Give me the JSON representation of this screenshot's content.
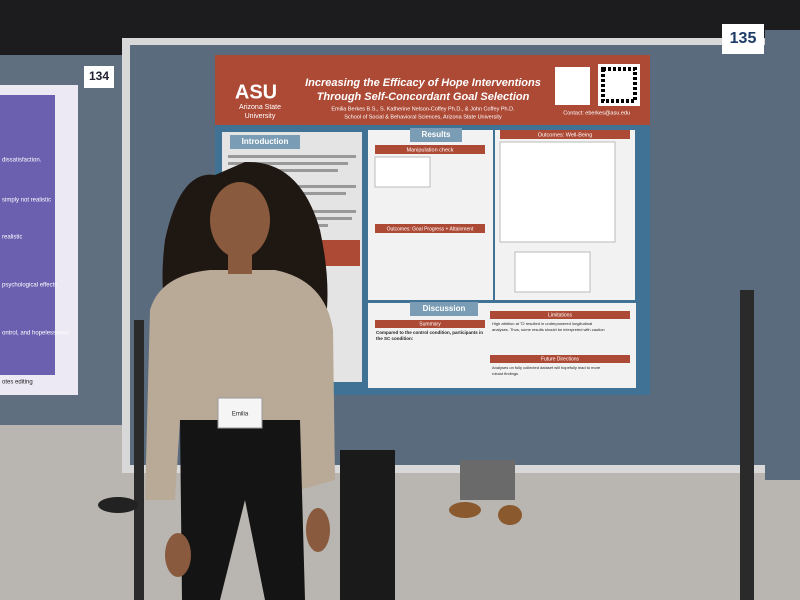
{
  "boards": {
    "left_number": "134",
    "right_number": "135"
  },
  "left_poster": {
    "lines": [
      "dissatisfaction.",
      "simply not realistic",
      "realistic",
      "psychological effects",
      "ontrol, and hopelessness",
      "otes editing"
    ]
  },
  "poster": {
    "logo": "ASU",
    "university": [
      "Arizona State",
      "University"
    ],
    "title": [
      "Increasing the Efficacy of Hope Interventions",
      "Through Self-Concordant Goal Selection"
    ],
    "authors": "Emilia Berkes B.S., S. Katherine Nelson-Coffey Ph.D., & John Coffey Ph.D.",
    "affiliation": "School of Social & Behavioral Sciences, Arizona State University",
    "contact": "Contact: eberkes@asu.edu",
    "sections": {
      "introduction": "Introduction",
      "results": "Results",
      "manipulation": "Manipulation check",
      "well_being": "Outcomes: Well-Being",
      "goal_progress": "Outcomes: Goal Progress + Attainment",
      "discussion": "Discussion",
      "summary": "Summary",
      "limitations": "Limitations",
      "future": "Future Directions"
    },
    "discussion_lead": [
      "Compared to the control condition, participants in",
      "the SC condition:"
    ],
    "limitations_text": [
      "High attrition at T2 resulted in underpowered longitudinal",
      "analyses. Thus, some results should be interpreted with caution"
    ],
    "future_text": [
      "Analyses on fully collected dataset will hopefully lead to more",
      "robust findings"
    ]
  },
  "badge": "Emilia"
}
